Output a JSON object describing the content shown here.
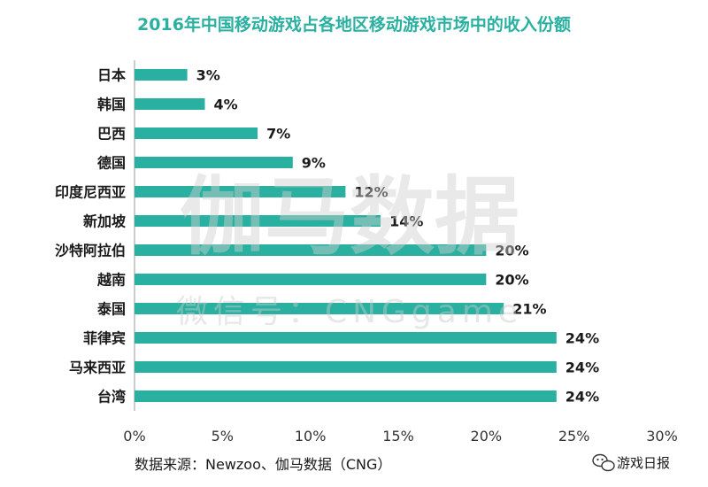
{
  "chart_data": {
    "type": "bar",
    "orientation": "horizontal",
    "title": "2016年中国移动游戏占各地区移动游戏市场中的收入份额",
    "categories": [
      "日本",
      "韩国",
      "巴西",
      "德国",
      "印度尼西亚",
      "新加坡",
      "沙特阿拉伯",
      "越南",
      "泰国",
      "菲律宾",
      "马来西亚",
      "台湾"
    ],
    "values": [
      3,
      4,
      7,
      9,
      12,
      14,
      20,
      20,
      21,
      24,
      24,
      24
    ],
    "data_labels": [
      "3%",
      "4%",
      "7%",
      "9%",
      "12%",
      "14%",
      "20%",
      "20%",
      "21%",
      "24%",
      "24%",
      "24%"
    ],
    "xlim": [
      0,
      30
    ],
    "xticks": [
      0,
      5,
      10,
      15,
      20,
      25,
      30
    ],
    "xtick_labels": [
      "0%",
      "5%",
      "10%",
      "15%",
      "20%",
      "25%",
      "30%"
    ],
    "xlabel": "",
    "ylabel": "",
    "grid": false,
    "bar_color": "#2ab0a0",
    "title_color": "#2ab0a0"
  },
  "source": "数据来源：Newzoo、伽马数据（CNG）",
  "watermark": {
    "main": "伽马数据",
    "sub": "微信号：CNGgame"
  },
  "logo": {
    "text": "游戏日报",
    "icon": "wechat-icon"
  }
}
